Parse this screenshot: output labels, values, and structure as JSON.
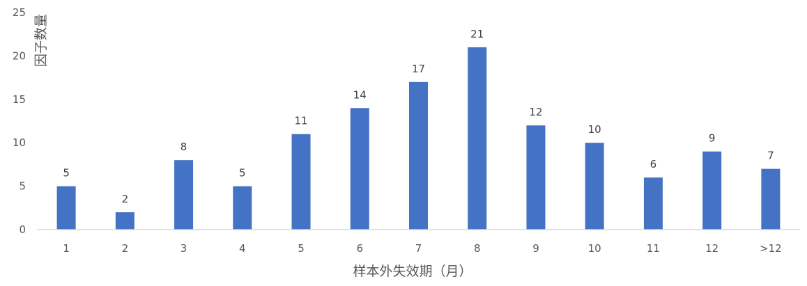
{
  "chart_data": {
    "type": "bar",
    "title": "",
    "xlabel": "样本外失效期（月）",
    "ylabel": "因子数量",
    "categories": [
      "1",
      "2",
      "3",
      "4",
      "5",
      "6",
      "7",
      "8",
      "9",
      "10",
      "11",
      "12",
      ">12"
    ],
    "values": [
      5,
      2,
      8,
      5,
      11,
      14,
      17,
      21,
      12,
      10,
      6,
      9,
      7
    ],
    "ylim": [
      0,
      25
    ],
    "yticks": [
      0,
      5,
      10,
      15,
      20,
      25
    ],
    "grid": false,
    "data_labels": true,
    "legend": "none",
    "colors": {
      "bar": "#4472C4",
      "axis": "#D9D9D9",
      "text": "#595959"
    }
  }
}
